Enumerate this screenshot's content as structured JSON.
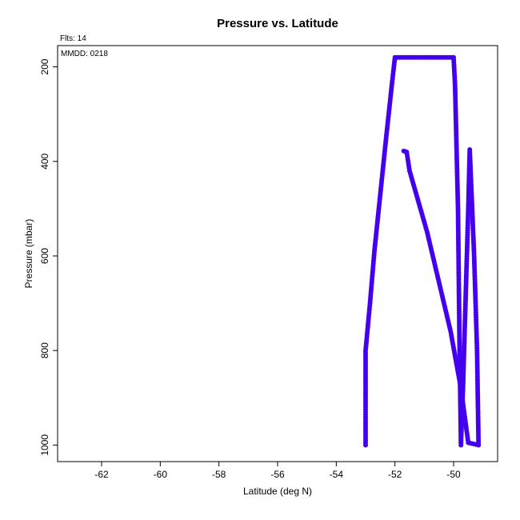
{
  "chart_data": {
    "type": "scatter",
    "title": "Pressure vs. Latitude",
    "xlabel": "Latitude (deg N)",
    "ylabel": "Pressure (mbar)",
    "xlim": [
      -63.5,
      -48.5
    ],
    "ylim": [
      1035,
      155
    ],
    "y_inverted": true,
    "x_ticks": [
      -62,
      -60,
      -58,
      -56,
      -54,
      -52,
      -50
    ],
    "y_ticks": [
      200,
      400,
      600,
      800,
      1000
    ],
    "grid": false,
    "annotations": {
      "flts": "Flts: 14",
      "mmdd": "MMDD: 0218"
    },
    "series": [
      {
        "color": "#4400ee",
        "path": [
          [
            -53.0,
            1000
          ],
          [
            -53.0,
            800
          ],
          [
            -52.85,
            700
          ],
          [
            -52.7,
            590
          ],
          [
            -52.5,
            470
          ],
          [
            -52.3,
            350
          ],
          [
            -52.1,
            235
          ],
          [
            -52.0,
            180
          ],
          [
            -51.0,
            180
          ],
          [
            -50.0,
            180
          ],
          [
            -49.95,
            240
          ],
          [
            -49.85,
            500
          ],
          [
            -49.8,
            780
          ],
          [
            -49.75,
            1000
          ],
          [
            -49.68,
            880
          ],
          [
            -49.5,
            500
          ],
          [
            -49.45,
            375
          ],
          [
            -49.3,
            600
          ],
          [
            -49.2,
            800
          ],
          [
            -49.15,
            1000
          ],
          [
            -49.5,
            995
          ],
          [
            -49.75,
            880
          ],
          [
            -50.1,
            760
          ],
          [
            -50.9,
            550
          ],
          [
            -51.5,
            420
          ],
          [
            -51.6,
            380
          ],
          [
            -51.7,
            378
          ]
        ]
      }
    ]
  }
}
